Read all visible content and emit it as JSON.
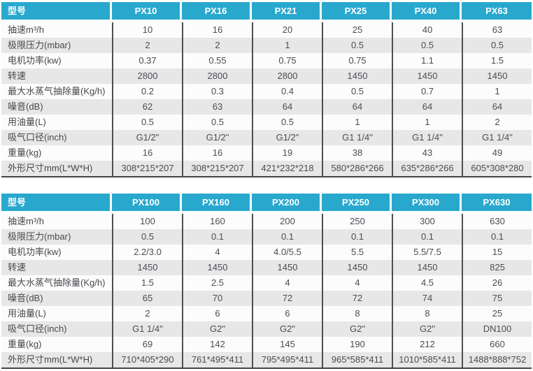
{
  "colors": {
    "accent": "#29a8ce",
    "header_text": "#ffffff",
    "row_alt": "#e7e7e7",
    "row_normal": "#fcfcfc",
    "grid_line": "#4f4f4f",
    "value_text": "#4c4c55"
  },
  "tables": [
    {
      "header": [
        "型号",
        "PX10",
        "PX16",
        "PX21",
        "PX25",
        "PX40",
        "PX63"
      ],
      "rows": [
        {
          "label": "抽速m³/h",
          "values": [
            "10",
            "16",
            "20",
            "25",
            "40",
            "63"
          ]
        },
        {
          "label": "极限压力(mbar)",
          "values": [
            "2",
            "2",
            "1",
            "0.5",
            "0.5",
            "0.5"
          ]
        },
        {
          "label": "电机功率(kw)",
          "values": [
            "0.37",
            "0.55",
            "0.75",
            "0.75",
            "1.1",
            "1.5"
          ]
        },
        {
          "label": "转速",
          "values": [
            "2800",
            "2800",
            "2800",
            "1450",
            "1450",
            "1450"
          ]
        },
        {
          "label": "最大水蒸气抽除量(Kg/h)",
          "values": [
            "0.2",
            "0.3",
            "0.4",
            "0.5",
            "0.7",
            "1"
          ]
        },
        {
          "label": "噪音(dB)",
          "values": [
            "62",
            "63",
            "64",
            "64",
            "64",
            "64"
          ]
        },
        {
          "label": "用油量(L)",
          "values": [
            "0.5",
            "0.5",
            "0.5",
            "1",
            "1",
            "2"
          ]
        },
        {
          "label": "吸气口径(inch)",
          "values": [
            "G1/2\"",
            "G1/2\"",
            "G1/2\"",
            "G1 1/4\"",
            "G1 1/4\"",
            "G1 1/4\""
          ]
        },
        {
          "label": "重量(kg)",
          "values": [
            "16",
            "16",
            "19",
            "38",
            "43",
            "49"
          ]
        },
        {
          "label": "外形尺寸mm(L*W*H)",
          "values": [
            "308*215*207",
            "308*215*207",
            "421*232*218",
            "580*286*266",
            "635*286*266",
            "605*308*280"
          ]
        }
      ]
    },
    {
      "header": [
        "型号",
        "PX100",
        "PX160",
        "PX200",
        "PX250",
        "PX300",
        "PX630"
      ],
      "rows": [
        {
          "label": "抽速m³/h",
          "values": [
            "100",
            "160",
            "200",
            "250",
            "300",
            "630"
          ]
        },
        {
          "label": "极限压力(mbar)",
          "values": [
            "0.5",
            "0.1",
            "0.1",
            "0.1",
            "0.1",
            "0.1"
          ]
        },
        {
          "label": "电机功率(kw)",
          "values": [
            "2.2/3.0",
            "4",
            "4.0/5.5",
            "5.5",
            "5.5/7.5",
            "15"
          ]
        },
        {
          "label": "转速",
          "values": [
            "1450",
            "1450",
            "1450",
            "1450",
            "1450",
            "825"
          ]
        },
        {
          "label": "最大水蒸气抽除量(Kg/h)",
          "values": [
            "1.5",
            "2.5",
            "4",
            "4",
            "4.5",
            "26"
          ]
        },
        {
          "label": "噪音(dB)",
          "values": [
            "65",
            "70",
            "72",
            "72",
            "74",
            "75"
          ]
        },
        {
          "label": "用油量(L)",
          "values": [
            "2",
            "6",
            "6",
            "8",
            "8",
            "25"
          ]
        },
        {
          "label": "吸气口径(inch)",
          "values": [
            "G1 1/4\"",
            "G2\"",
            "G2\"",
            "G2\"",
            "G2\"",
            "DN100"
          ]
        },
        {
          "label": "重量(kg)",
          "values": [
            "69",
            "142",
            "145",
            "190",
            "212",
            "660"
          ]
        },
        {
          "label": "外形尺寸mm(L*W*H)",
          "values": [
            "710*405*290",
            "761*495*411",
            "795*495*411",
            "965*585*411",
            "1010*585*411",
            "1488*888*752"
          ]
        }
      ]
    }
  ]
}
